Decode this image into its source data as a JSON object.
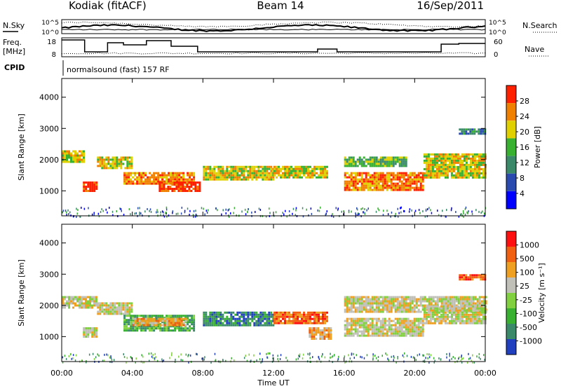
{
  "header": {
    "station": "Kodiak (fitACF)",
    "beam": "Beam 14",
    "date": "16/Sep/2011"
  },
  "noise_panel": {
    "left_label": "N.Sky",
    "right_label": "N.Search",
    "ticks": [
      "10^5",
      "10^0"
    ]
  },
  "freq_panel": {
    "left_label_line1": "Freq.",
    "left_label_line2": "[MHz]",
    "left_ticks": [
      "18",
      "8"
    ],
    "right_ticks": [
      "60",
      "0"
    ],
    "right_label": "Nave"
  },
  "cpid": {
    "label": "CPID",
    "text": "normalsound (fast) 157 RF"
  },
  "chart_data": [
    {
      "type": "heatmap",
      "title": "Power",
      "ylabel": "Slant Range [km]",
      "ylim": [
        200,
        4600
      ],
      "yticks": [
        "1000",
        "2000",
        "3000",
        "4000"
      ],
      "colorbar_label": "Power [dB]",
      "colorbar_ticks": [
        "4",
        "8",
        "12",
        "16",
        "20",
        "24",
        "28"
      ],
      "colorbar_colors": [
        "#0000ff",
        "#2a4ab0",
        "#3a8a6a",
        "#38b030",
        "#e0d000",
        "#f08000",
        "#ff2000"
      ],
      "segments": [
        {
          "t0": 0.0,
          "t1": 1.2,
          "r0": 1900,
          "r1": 2300,
          "level": 4
        },
        {
          "t0": 1.2,
          "t1": 2.0,
          "r0": 1000,
          "r1": 1300,
          "level": 6
        },
        {
          "t0": 2.0,
          "t1": 4.0,
          "r0": 1700,
          "r1": 2100,
          "level": 4
        },
        {
          "t0": 3.5,
          "t1": 7.5,
          "r0": 1200,
          "r1": 1600,
          "level": 5
        },
        {
          "t0": 5.5,
          "t1": 7.8,
          "r0": 1000,
          "r1": 1300,
          "level": 6
        },
        {
          "t0": 8.0,
          "t1": 12.0,
          "r0": 1350,
          "r1": 1800,
          "level": 4
        },
        {
          "t0": 12.0,
          "t1": 15.0,
          "r0": 1400,
          "r1": 1800,
          "level": 4
        },
        {
          "t0": 16.0,
          "t1": 20.5,
          "r0": 1000,
          "r1": 1600,
          "level": 5
        },
        {
          "t0": 16.0,
          "t1": 19.5,
          "r0": 1800,
          "r1": 2100,
          "level": 3
        },
        {
          "t0": 20.5,
          "t1": 24.0,
          "r0": 1400,
          "r1": 2200,
          "level": 4
        },
        {
          "t0": 22.5,
          "t1": 24.0,
          "r0": 2800,
          "r1": 3000,
          "level": 2
        }
      ]
    },
    {
      "type": "heatmap",
      "title": "Velocity",
      "ylabel": "Slant Range [km]",
      "ylim": [
        200,
        4600
      ],
      "yticks": [
        "1000",
        "2000",
        "3000",
        "4000"
      ],
      "xticks": [
        "00:00",
        "04:00",
        "08:00",
        "12:00",
        "16:00",
        "20:00",
        "00:00"
      ],
      "xlabel": "Time UT",
      "colorbar_label": "Velocity [m s⁻¹]",
      "colorbar_ticks": [
        "1000",
        "500",
        "100",
        "25",
        "-25",
        "-100",
        "-500",
        "-1000"
      ],
      "colorbar_colors": [
        "#2040c0",
        "#3a8a6a",
        "#38b030",
        "#80d040",
        "#c0c0b8",
        "#f0a020",
        "#f06010",
        "#ff1010"
      ],
      "segments": [
        {
          "t0": 0.0,
          "t1": 2.0,
          "r0": 1900,
          "r1": 2300,
          "level": 4
        },
        {
          "t0": 1.2,
          "t1": 2.0,
          "r0": 1000,
          "r1": 1300,
          "level": 4
        },
        {
          "t0": 2.0,
          "t1": 4.0,
          "r0": 1700,
          "r1": 2100,
          "level": 4
        },
        {
          "t0": 3.5,
          "t1": 7.5,
          "r0": 1200,
          "r1": 1700,
          "level": 2
        },
        {
          "t0": 4.0,
          "t1": 7.0,
          "r0": 1350,
          "r1": 1600,
          "level": 5
        },
        {
          "t0": 8.0,
          "t1": 12.0,
          "r0": 1350,
          "r1": 1800,
          "level": 1
        },
        {
          "t0": 12.0,
          "t1": 15.0,
          "r0": 1400,
          "r1": 1800,
          "level": 6
        },
        {
          "t0": 14.0,
          "t1": 15.3,
          "r0": 900,
          "r1": 1300,
          "level": 5
        },
        {
          "t0": 16.0,
          "t1": 20.5,
          "r0": 1000,
          "r1": 1600,
          "level": 4
        },
        {
          "t0": 16.0,
          "t1": 24.0,
          "r0": 1800,
          "r1": 2300,
          "level": 4
        },
        {
          "t0": 20.5,
          "t1": 24.0,
          "r0": 1400,
          "r1": 2000,
          "level": 4
        },
        {
          "t0": 22.5,
          "t1": 24.0,
          "r0": 2800,
          "r1": 3000,
          "level": 6
        }
      ]
    }
  ]
}
